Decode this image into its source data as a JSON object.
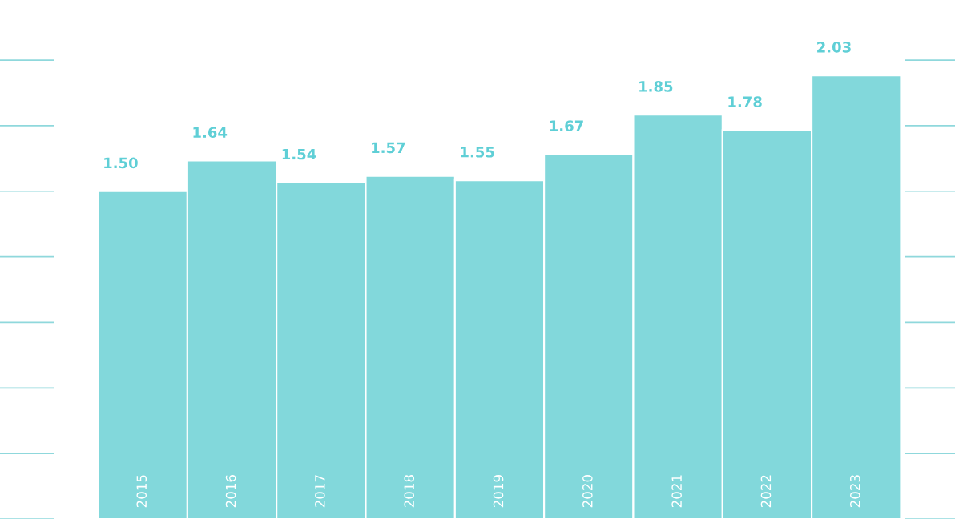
{
  "chart_data": {
    "type": "bar",
    "categories": [
      "2015",
      "2016",
      "2017",
      "2018",
      "2019",
      "2020",
      "2021",
      "2022",
      "2023"
    ],
    "values": [
      1.5,
      1.64,
      1.54,
      1.57,
      1.55,
      1.67,
      1.85,
      1.78,
      2.03
    ],
    "value_labels": [
      "1.50",
      "1.64",
      "1.54",
      "1.57",
      "1.55",
      "1.67",
      "1.85",
      "1.78",
      "2.03"
    ],
    "color": "#82d8db",
    "tick_labels": "x"
  }
}
